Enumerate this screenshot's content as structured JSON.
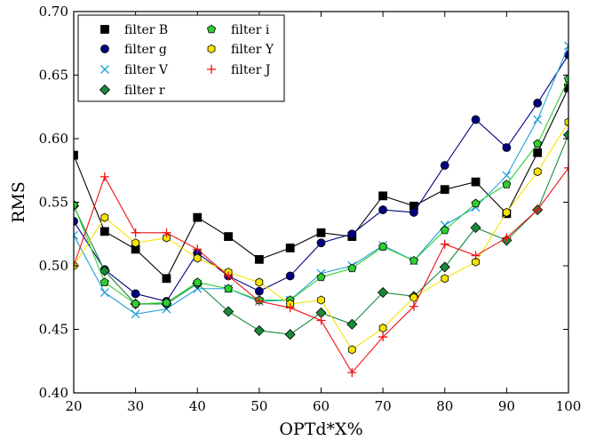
{
  "chart_data": {
    "type": "line",
    "xlabel": "OPTd*X%",
    "ylabel": "RMS",
    "xlim": [
      20,
      100
    ],
    "ylim": [
      0.4,
      0.7
    ],
    "xticks": [
      20,
      30,
      40,
      50,
      60,
      70,
      80,
      90,
      100
    ],
    "yticks": [
      0.4,
      0.45,
      0.5,
      0.55,
      0.6,
      0.65,
      0.7
    ],
    "x": [
      20,
      25,
      30,
      35,
      40,
      45,
      50,
      55,
      60,
      65,
      70,
      75,
      80,
      85,
      90,
      95,
      100
    ],
    "grid": false,
    "legend_position": "top-left",
    "series": [
      {
        "name": "filter B",
        "color": "#000000",
        "marker": "square",
        "values": [
          0.587,
          0.527,
          0.513,
          0.49,
          0.538,
          0.523,
          0.505,
          0.514,
          0.526,
          0.523,
          0.555,
          0.547,
          0.56,
          0.566,
          0.541,
          0.589,
          0.64
        ]
      },
      {
        "name": "filter g",
        "color": "#000080",
        "marker": "circle",
        "values": [
          0.535,
          0.497,
          0.478,
          0.472,
          0.51,
          0.492,
          0.48,
          0.492,
          0.518,
          0.525,
          0.544,
          0.542,
          0.579,
          0.615,
          0.593,
          0.628,
          0.666
        ]
      },
      {
        "name": "filter V",
        "color": "#1f9fd8",
        "marker": "x",
        "values": [
          0.524,
          0.479,
          0.462,
          0.466,
          0.482,
          0.482,
          0.472,
          0.473,
          0.494,
          0.5,
          0.516,
          0.504,
          0.532,
          0.546,
          0.571,
          0.615,
          0.673
        ]
      },
      {
        "name": "filter r",
        "color": "#1a8a3a",
        "marker": "diamond",
        "values": [
          0.547,
          0.496,
          0.47,
          0.47,
          0.486,
          0.464,
          0.449,
          0.446,
          0.463,
          0.454,
          0.479,
          0.476,
          0.499,
          0.53,
          0.52,
          0.544,
          0.603
        ]
      },
      {
        "name": "filter i",
        "color": "#2fcf2f",
        "marker": "pentagon",
        "values": [
          0.548,
          0.487,
          0.47,
          0.471,
          0.487,
          0.482,
          0.473,
          0.473,
          0.491,
          0.498,
          0.515,
          0.504,
          0.528,
          0.549,
          0.564,
          0.596,
          0.647
        ]
      },
      {
        "name": "filter Y",
        "color": "#f5e400",
        "marker": "hexagon",
        "values": [
          0.5,
          0.538,
          0.518,
          0.522,
          0.506,
          0.495,
          0.487,
          0.47,
          0.473,
          0.434,
          0.451,
          0.475,
          0.49,
          0.503,
          0.542,
          0.574,
          0.613
        ]
      },
      {
        "name": "filter J",
        "color": "#ee1111",
        "marker": "plus",
        "values": [
          0.5,
          0.57,
          0.526,
          0.526,
          0.513,
          0.492,
          0.472,
          0.467,
          0.457,
          0.416,
          0.444,
          0.468,
          0.517,
          0.508,
          0.522,
          0.544,
          0.577
        ]
      }
    ]
  }
}
